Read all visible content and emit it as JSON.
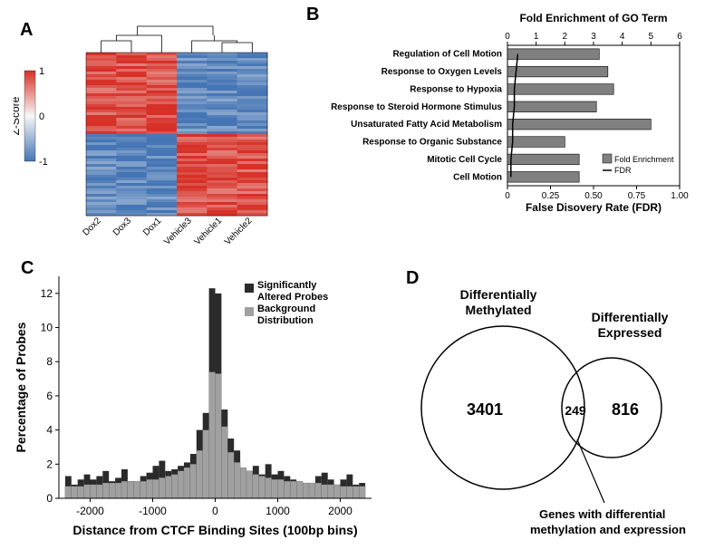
{
  "panels": {
    "A": "A",
    "B": "B",
    "C": "C",
    "D": "D"
  },
  "heatmap": {
    "colorbar_label": "Z-Score",
    "colorbar_ticks": [
      1,
      0,
      -1
    ],
    "colorbar_colors": {
      "high": "#d73027",
      "mid": "#f7f7f7",
      "low": "#4575b4"
    },
    "columns": [
      "Dox2",
      "Dox3",
      "Dox1",
      "Vehicle3",
      "Vehicle1",
      "Vehicle2"
    ]
  },
  "go_chart": {
    "top_axis_label": "Fold Enrichment of GO Term",
    "bottom_axis_label": "False Disovery Rate (FDR)",
    "top_ticks": [
      0,
      1,
      2,
      3,
      4,
      5,
      6
    ],
    "bottom_ticks": [
      0,
      0.25,
      0.5,
      0.75,
      1
    ],
    "bar_color": "#808080",
    "legend_bar": "Fold Enrichment",
    "legend_line": "FDR",
    "items": [
      {
        "label": "Regulation of Cell Motion",
        "fold": 3.2,
        "fdr": 0.06
      },
      {
        "label": "Response to Oxygen Levels",
        "fold": 3.5,
        "fdr": 0.05
      },
      {
        "label": "Response to Hypoxia",
        "fold": 3.7,
        "fdr": 0.04
      },
      {
        "label": "Response to Steroid Hormone Stimulus",
        "fold": 3.1,
        "fdr": 0.04
      },
      {
        "label": "Unsaturated Fatty Acid Metabolism",
        "fold": 5.0,
        "fdr": 0.03
      },
      {
        "label": "Response to Organic Substance",
        "fold": 2.0,
        "fdr": 0.03
      },
      {
        "label": "Mitotic Cell Cycle",
        "fold": 2.5,
        "fdr": 0.02
      },
      {
        "label": "Cell Motion",
        "fold": 2.5,
        "fdr": 0.02
      }
    ]
  },
  "histogram": {
    "x_label": "Distance from CTCF Binding Sites (100bp bins)",
    "y_label": "Percentage of Probes",
    "x_ticks": [
      -2000,
      -1000,
      0,
      1000,
      2000
    ],
    "y_ticks": [
      0,
      2,
      4,
      6,
      8,
      10,
      12
    ],
    "ylim": [
      0,
      13
    ],
    "xlim": [
      -2500,
      2500
    ],
    "legend_sig": "Significantly Altered Probes",
    "legend_bg": "Background Distribution",
    "sig_color": "#2b2b2b",
    "bg_color": "#a0a0a0",
    "bins": [
      {
        "x": -2400,
        "sig": 1.3,
        "bg": 0.7
      },
      {
        "x": -2300,
        "sig": 0.8,
        "bg": 0.7
      },
      {
        "x": -2200,
        "sig": 1.1,
        "bg": 0.7
      },
      {
        "x": -2100,
        "sig": 1.4,
        "bg": 0.8
      },
      {
        "x": -2000,
        "sig": 1.1,
        "bg": 0.8
      },
      {
        "x": -1900,
        "sig": 1.3,
        "bg": 0.8
      },
      {
        "x": -1800,
        "sig": 1.6,
        "bg": 0.9
      },
      {
        "x": -1700,
        "sig": 1.0,
        "bg": 0.9
      },
      {
        "x": -1600,
        "sig": 1.2,
        "bg": 0.9
      },
      {
        "x": -1500,
        "sig": 1.7,
        "bg": 1.0
      },
      {
        "x": -1400,
        "sig": 1.0,
        "bg": 1.0
      },
      {
        "x": -1300,
        "sig": 0.8,
        "bg": 1.0
      },
      {
        "x": -1200,
        "sig": 1.3,
        "bg": 1.0
      },
      {
        "x": -1100,
        "sig": 1.5,
        "bg": 1.1
      },
      {
        "x": -1000,
        "sig": 1.9,
        "bg": 1.1
      },
      {
        "x": -900,
        "sig": 2.2,
        "bg": 1.2
      },
      {
        "x": -800,
        "sig": 1.6,
        "bg": 1.3
      },
      {
        "x": -700,
        "sig": 1.7,
        "bg": 1.4
      },
      {
        "x": -600,
        "sig": 1.9,
        "bg": 1.6
      },
      {
        "x": -500,
        "sig": 2.1,
        "bg": 1.8
      },
      {
        "x": -400,
        "sig": 2.6,
        "bg": 2.0
      },
      {
        "x": -300,
        "sig": 4.0,
        "bg": 2.8
      },
      {
        "x": -200,
        "sig": 5.0,
        "bg": 4.0
      },
      {
        "x": -100,
        "sig": 12.3,
        "bg": 7.4
      },
      {
        "x": 0,
        "sig": 12.0,
        "bg": 7.3
      },
      {
        "x": 100,
        "sig": 5.2,
        "bg": 4.2
      },
      {
        "x": 200,
        "sig": 3.5,
        "bg": 2.7
      },
      {
        "x": 300,
        "sig": 2.8,
        "bg": 2.1
      },
      {
        "x": 400,
        "sig": 1.7,
        "bg": 1.8
      },
      {
        "x": 500,
        "sig": 1.6,
        "bg": 1.6
      },
      {
        "x": 600,
        "sig": 1.9,
        "bg": 1.4
      },
      {
        "x": 700,
        "sig": 1.4,
        "bg": 1.3
      },
      {
        "x": 800,
        "sig": 2.0,
        "bg": 1.2
      },
      {
        "x": 900,
        "sig": 1.4,
        "bg": 1.1
      },
      {
        "x": 1000,
        "sig": 1.6,
        "bg": 1.1
      },
      {
        "x": 1100,
        "sig": 1.3,
        "bg": 1.0
      },
      {
        "x": 1200,
        "sig": 1.1,
        "bg": 1.0
      },
      {
        "x": 1300,
        "sig": 0.8,
        "bg": 1.0
      },
      {
        "x": 1400,
        "sig": 0.9,
        "bg": 0.9
      },
      {
        "x": 1500,
        "sig": 0.8,
        "bg": 0.9
      },
      {
        "x": 1600,
        "sig": 1.3,
        "bg": 0.9
      },
      {
        "x": 1700,
        "sig": 1.5,
        "bg": 0.8
      },
      {
        "x": 1800,
        "sig": 1.1,
        "bg": 0.8
      },
      {
        "x": 1900,
        "sig": 0.7,
        "bg": 0.8
      },
      {
        "x": 2000,
        "sig": 1.1,
        "bg": 0.7
      },
      {
        "x": 2100,
        "sig": 1.4,
        "bg": 0.7
      },
      {
        "x": 2200,
        "sig": 0.8,
        "bg": 0.7
      },
      {
        "x": 2300,
        "sig": 0.9,
        "bg": 0.7
      }
    ]
  },
  "venn": {
    "left_label": "Differentially Methylated",
    "right_label": "Differentially Expressed",
    "left_value": "3401",
    "overlap_value": "249",
    "right_value": "816",
    "caption": "Genes with differential methylation and expression"
  }
}
